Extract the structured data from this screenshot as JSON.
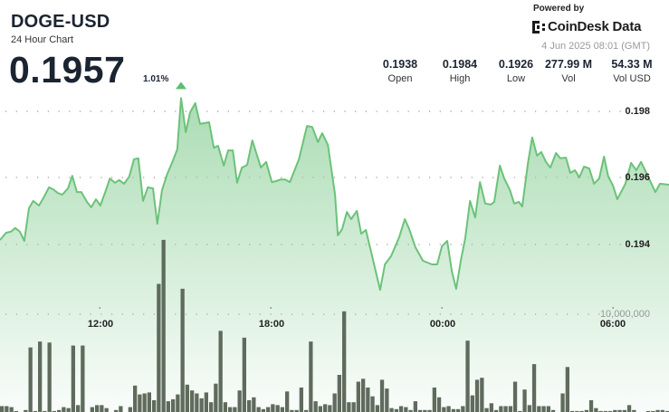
{
  "header": {
    "title": "DOGE-USD",
    "subtitle": "24 Hour Chart",
    "price": "0.1957",
    "change": "1.01%",
    "change_direction": "up",
    "powered_by": "Powered by",
    "brand": "CoinDesk Data",
    "timestamp": "4 Jun 2025 08:01 (GMT)"
  },
  "stats": [
    {
      "value": "0.1938",
      "label": "Open"
    },
    {
      "value": "0.1984",
      "label": "High"
    },
    {
      "value": "0.1926",
      "label": "Low"
    },
    {
      "value": "277.99 M",
      "label": "Vol"
    },
    {
      "value": "54.33 M",
      "label": "Vol USD"
    }
  ],
  "colors": {
    "line": "#6cc27a",
    "fill": "#8fd19b",
    "volume": "#5f6b5c",
    "up": "#5bbf6f",
    "text": "#1b2431"
  },
  "chart_data": {
    "type": "line",
    "grid": true,
    "y_ticks": [
      "0.198",
      "0.196",
      "0.194"
    ],
    "volume_tick": "10,000,000",
    "x_ticks": [
      "12:00",
      "18:00",
      "00:00",
      "06:00"
    ],
    "x_range": [
      "08:30",
      "08:01"
    ],
    "price_series": {
      "time": [
        "08:30",
        "08:43",
        "08:53",
        "09:02",
        "09:12",
        "09:21",
        "09:31",
        "09:40",
        "09:52",
        "10:01",
        "10:13",
        "10:22",
        "10:32",
        "10:41",
        "10:53",
        "11:02",
        "11:12",
        "11:21",
        "11:33",
        "11:42",
        "11:52",
        "12:01",
        "12:13",
        "12:21",
        "12:32",
        "12:41",
        "12:51",
        "13:02",
        "13:12",
        "13:21",
        "13:31",
        "13:41",
        "13:52",
        "14:01",
        "14:11",
        "14:22",
        "14:32",
        "14:43",
        "14:51",
        "15:01",
        "15:10",
        "15:21",
        "15:31",
        "15:50",
        "16:00",
        "16:09",
        "16:21",
        "16:30",
        "16:40",
        "16:49",
        "16:59",
        "17:10",
        "17:21",
        "17:39",
        "17:50",
        "18:02",
        "18:11",
        "18:21",
        "18:30",
        "18:40",
        "18:59",
        "19:16",
        "19:27",
        "19:39",
        "19:48",
        "20:00",
        "20:15",
        "20:21",
        "20:30",
        "20:40",
        "20:49",
        "21:01",
        "21:10",
        "21:20",
        "21:50",
        "22:00",
        "22:13",
        "22:30",
        "22:42",
        "22:51",
        "23:04",
        "23:20",
        "23:39",
        "23:50",
        "00:00",
        "00:11",
        "00:21",
        "00:30",
        "00:40",
        "00:49",
        "00:59",
        "01:10",
        "01:20",
        "01:31",
        "01:43",
        "01:50",
        "02:02",
        "02:11",
        "02:23",
        "02:32",
        "02:42",
        "02:49",
        "03:01",
        "03:10",
        "03:20",
        "03:29",
        "03:39",
        "03:48",
        "04:00",
        "04:09",
        "04:21",
        "04:30",
        "04:40",
        "04:49",
        "04:59",
        "05:10",
        "05:20",
        "05:31",
        "05:41",
        "05:50",
        "06:00",
        "06:09",
        "06:26",
        "06:38",
        "06:49",
        "06:59",
        "07:12",
        "07:29",
        "07:39",
        "07:58"
      ],
      "price": [
        0.19411,
        0.19433,
        0.19436,
        0.19447,
        0.19436,
        0.19408,
        0.19507,
        0.19529,
        0.19515,
        0.19537,
        0.1957,
        0.19564,
        0.19553,
        0.19548,
        0.19567,
        0.19605,
        0.19556,
        0.19556,
        0.19526,
        0.1951,
        0.19534,
        0.19515,
        0.19562,
        0.19597,
        0.19584,
        0.19592,
        0.19581,
        0.19603,
        0.19655,
        0.19658,
        0.19529,
        0.1957,
        0.19567,
        0.1946,
        0.19562,
        0.19611,
        0.19644,
        0.19685,
        0.1984,
        0.19737,
        0.19797,
        0.19825,
        0.19762,
        0.19767,
        0.1969,
        0.19696,
        0.19636,
        0.19682,
        0.19682,
        0.19584,
        0.1963,
        0.19638,
        0.19712,
        0.1963,
        0.19647,
        0.19586,
        0.19589,
        0.19594,
        0.19594,
        0.19586,
        0.19655,
        0.19756,
        0.19753,
        0.19707,
        0.19734,
        0.19699,
        0.19548,
        0.19425,
        0.19444,
        0.19496,
        0.19474,
        0.19499,
        0.1943,
        0.19441,
        0.1926,
        0.19337,
        0.19362,
        0.19419,
        0.19474,
        0.19444,
        0.19389,
        0.19348,
        0.19337,
        0.19337,
        0.19392,
        0.19408,
        0.19315,
        0.19263,
        0.19351,
        0.19416,
        0.19529,
        0.19479,
        0.19586,
        0.19521,
        0.19518,
        0.19526,
        0.19636,
        0.19597,
        0.19562,
        0.19521,
        0.19526,
        0.19512,
        0.19644,
        0.19721,
        0.19666,
        0.19677,
        0.19647,
        0.1963,
        0.19674,
        0.19658,
        0.1966,
        0.19614,
        0.19622,
        0.196,
        0.19633,
        0.19627,
        0.19581,
        0.19597,
        0.19663,
        0.19603,
        0.19575,
        0.19534,
        0.19581,
        0.19644,
        0.19622,
        0.19647,
        0.19608,
        0.19556,
        0.19581,
        0.19578
      ]
    },
    "volume_series": {
      "start": "08:30",
      "interval_minutes": 10,
      "values": [
        600000.0,
        600000.0,
        500000.0,
        100000.0,
        0,
        200000.0,
        6600000.0,
        100000.0,
        7200000.0,
        100000.0,
        7100000.0,
        100000.0,
        200000.0,
        500000.0,
        400000.0,
        6800000.0,
        700000.0,
        6800000.0,
        0,
        500000.0,
        700000.0,
        700000.0,
        400000.0,
        0,
        200000.0,
        600000.0,
        0,
        500000.0,
        2700000.0,
        1800000.0,
        1900000.0,
        2000000.0,
        1200000.0,
        13100000.0,
        17600000.0,
        1100000.0,
        1300000.0,
        1800000.0,
        12600000.0,
        2800000.0,
        2200000.0,
        1900000.0,
        1400000.0,
        2000000.0,
        1000000.0,
        2900000.0,
        8300000.0,
        1000000.0,
        500000.0,
        500000.0,
        2200000.0,
        7600000.0,
        1200000.0,
        1500000.0,
        500000.0,
        300000.0,
        500000.0,
        800000.0,
        700000.0,
        500000.0,
        2100000.0,
        200000.0,
        200000.0,
        2500000.0,
        200000.0,
        7200000.0,
        1100000.0,
        600000.0,
        800000.0,
        700000.0,
        1900000.0,
        3800000.0,
        10300000.0,
        1000000.0,
        1000000.0,
        3100000.0,
        3400000.0,
        2500000.0,
        1600000.0,
        700000.0,
        3300000.0,
        2400000.0,
        400000.0,
        300000.0,
        600000.0,
        500000.0,
        200000.0,
        1100000.0,
        200000.0,
        200000.0,
        200000.0,
        2500000.0,
        1500000.0,
        500000.0,
        600000.0,
        300000.0,
        300000.0,
        600000.0,
        7300000.0,
        1700000.0,
        3300000.0,
        3500000.0,
        400000.0,
        900000.0,
        200000.0,
        600000.0,
        600000.0,
        600000.0,
        3100000.0,
        100000.0,
        2300000.0,
        700000.0,
        4900000.0,
        600000.0,
        600000.0,
        600000.0,
        200000.0,
        0,
        1900000.0,
        4600000.0,
        100000.0,
        100000.0,
        100000.0,
        200000.0,
        1200000.0,
        400000.0,
        100000.0,
        100000.0,
        100000.0,
        200000.0,
        200000.0,
        200000.0,
        700000.0,
        200000.0,
        0,
        0,
        100000.0,
        100000.0,
        200000.0,
        200000.0,
        100000.0,
        0
      ]
    }
  }
}
